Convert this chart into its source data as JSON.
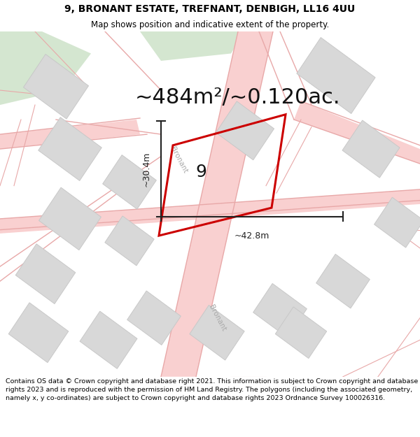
{
  "title_line1": "9, BRONANT ESTATE, TREFNANT, DENBIGH, LL16 4UU",
  "title_line2": "Map shows position and indicative extent of the property.",
  "area_text": "~484m²/~0.120ac.",
  "property_number": "9",
  "dim_width": "~42.8m",
  "dim_height": "~30.4m",
  "footer_text": "Contains OS data © Crown copyright and database right 2021. This information is subject to Crown copyright and database rights 2023 and is reproduced with the permission of HM Land Registry. The polygons (including the associated geometry, namely x, y co-ordinates) are subject to Crown copyright and database rights 2023 Ordnance Survey 100026316.",
  "bg_color": "#ffffff",
  "map_bg": "#f7f7f7",
  "road_color": "#f9d0d0",
  "road_line_color": "#e8a8a8",
  "building_fill": "#d8d8d8",
  "building_stroke": "#c8c8c8",
  "green_fill": "#d4e6d0",
  "green_stroke": "none",
  "property_stroke": "#cc0000",
  "property_fill": "none",
  "dim_line_color": "#222222",
  "title_color": "#000000",
  "footer_color": "#000000",
  "street_label_color": "#aaaaaa",
  "title_fontsize": 10,
  "subtitle_fontsize": 8.5,
  "area_fontsize": 22,
  "number_fontsize": 18,
  "dim_fontsize": 9,
  "footer_fontsize": 6.8,
  "street_fontsize": 7.5
}
